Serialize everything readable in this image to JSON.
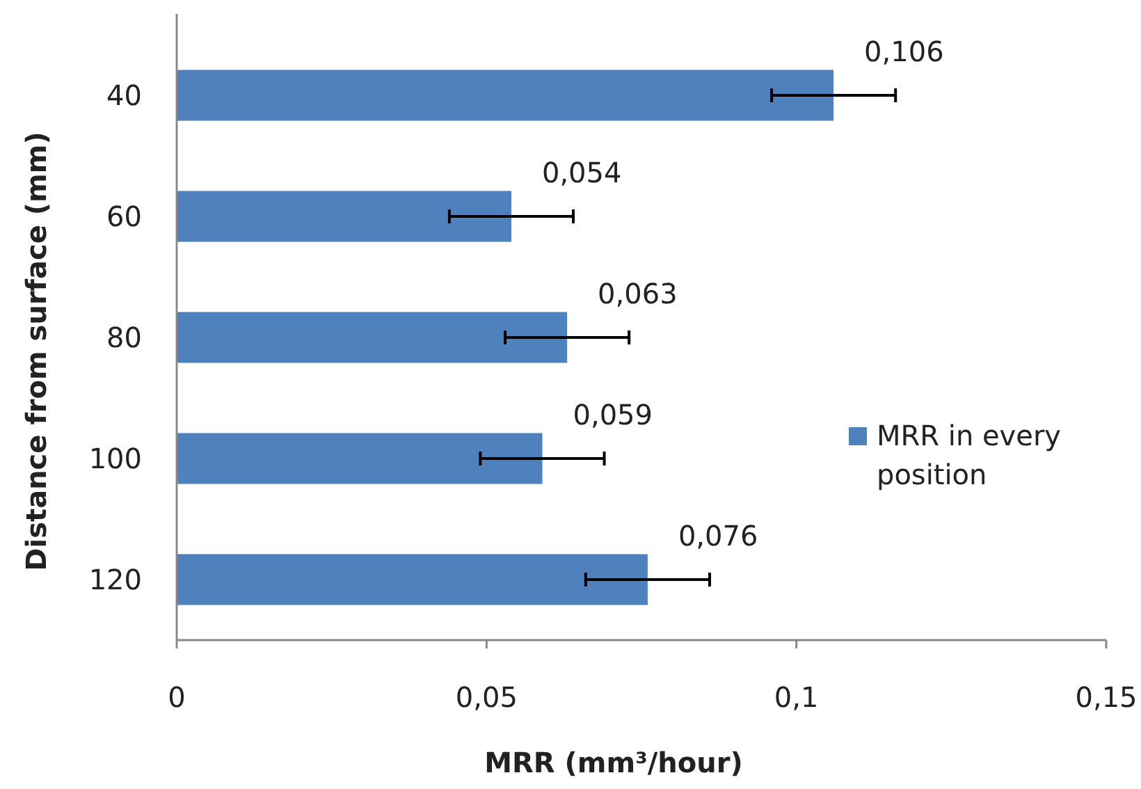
{
  "chart_data": {
    "type": "bar",
    "orientation": "horizontal",
    "xlabel": "MRR (mm³/hour)",
    "ylabel": "Distance from surface (mm)",
    "categories": [
      "40",
      "60",
      "80",
      "100",
      "120"
    ],
    "series": [
      {
        "name": "MRR in every position",
        "color": "#4f81bd",
        "values": [
          0.106,
          0.054,
          0.063,
          0.059,
          0.076
        ],
        "errors": [
          0.01,
          0.01,
          0.01,
          0.01,
          0.01
        ],
        "value_labels": [
          "0,106",
          "0,054",
          "0,063",
          "0,059",
          "0,076"
        ]
      }
    ],
    "xlim": [
      0,
      0.15
    ],
    "xticks": [
      {
        "value": 0,
        "label": "0"
      },
      {
        "value": 0.05,
        "label": "0,05"
      },
      {
        "value": 0.1,
        "label": "0,1"
      },
      {
        "value": 0.15,
        "label": "0,15"
      }
    ],
    "grid": false,
    "legend": "right"
  }
}
